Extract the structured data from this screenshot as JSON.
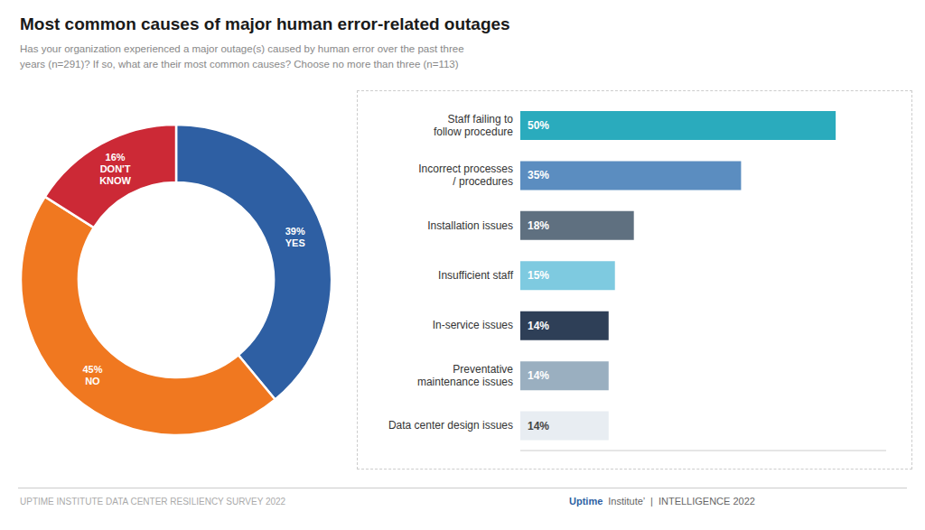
{
  "chart_data": [
    {
      "type": "pie",
      "title": "Most common causes of major human error-related outages",
      "subtitle": "Has your organization experienced a major outage(s) caused by human error over the past three\nyears (n=291)? If so, what are their most common causes? Choose no more than three (n=113)",
      "categories": [
        "YES",
        "NO",
        "DON'T\nKNOW"
      ],
      "values": [
        39,
        45,
        16
      ],
      "value_labels": [
        "39%",
        "45%",
        "16%"
      ],
      "data_labels": true,
      "colors": [
        "#2E5FA3",
        "#F07820",
        "#CC2936"
      ],
      "annotations": [
        "UPTIME INSTITUTE DATA CENTER RESILIENCY SURVEY 2022",
        "Uptime",
        "Institute’  |  INTELLIGENCE 2022"
      ]
    },
    {
      "type": "bar",
      "orientation": "horizontal",
      "categories": [
        "Staff failing to\nfollow procedure",
        "Incorrect processes\n/ procedures",
        "Installation issues",
        "Insufficient staff",
        "In-service issues",
        "Preventative\nmaintenance issues",
        "Data center design issues"
      ],
      "values": [
        50,
        35,
        18,
        15,
        14,
        14,
        14
      ],
      "value_labels": [
        "50%",
        "35%",
        "18%",
        "15%",
        "14%",
        "14%",
        "14%"
      ],
      "data_labels": true,
      "colors": [
        "#2AABBD",
        "#5B8DC0",
        "#5F7080",
        "#7ECAE0",
        "#2E3F57",
        "#9AAFC0",
        "#E8EDF2"
      ],
      "xlim": [
        0,
        58
      ],
      "tick_labels": "y"
    }
  ]
}
